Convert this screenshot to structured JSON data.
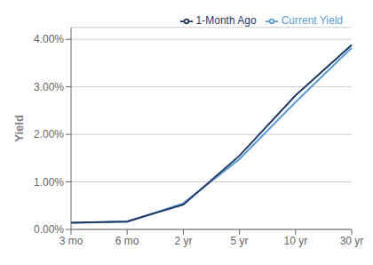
{
  "chart_data": {
    "type": "line",
    "categories": [
      "3 mo",
      "6 mo",
      "2 yr",
      "5 yr",
      "10 yr",
      "30 yr"
    ],
    "series": [
      {
        "name": "Current Yield",
        "color": "#5B9BD5",
        "values": [
          0.0014,
          0.0016,
          0.0055,
          0.0148,
          0.0268,
          0.0382
        ]
      },
      {
        "name": "1-Month Ago",
        "color": "#1F3864",
        "values": [
          0.0014,
          0.0017,
          0.0052,
          0.0155,
          0.0282,
          0.0388
        ]
      }
    ],
    "ylabel": "Yield",
    "ylim": [
      0.0,
      0.0425
    ],
    "yticks": [
      {
        "value": 0.0,
        "label": "0.00%"
      },
      {
        "value": 0.01,
        "label": "1.00%"
      },
      {
        "value": 0.02,
        "label": "2.00%"
      },
      {
        "value": 0.03,
        "label": "3.00%"
      },
      {
        "value": 0.04,
        "label": "4.00%"
      }
    ],
    "grid": true,
    "legend": "upper right"
  }
}
